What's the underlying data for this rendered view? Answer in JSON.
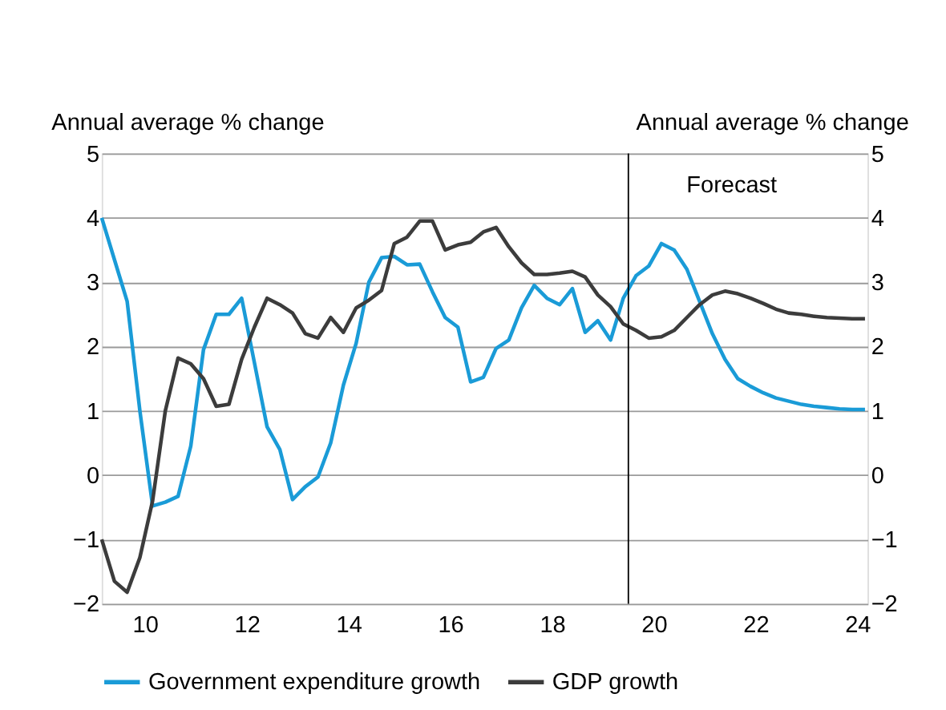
{
  "chart_data": {
    "type": "line",
    "ylabel": "Annual average % change",
    "y2label": "Annual average % change",
    "xlim": [
      9.15,
      24.2
    ],
    "xticks": [
      10,
      12,
      14,
      16,
      18,
      20,
      22,
      24
    ],
    "ylim": [
      -2,
      5
    ],
    "yticks": [
      -2,
      -1,
      0,
      1,
      2,
      3,
      4,
      5
    ],
    "y2lim": [
      -2,
      5
    ],
    "y2ticks": [
      -2,
      -1,
      0,
      1,
      2,
      3,
      4,
      5
    ],
    "x": [
      9.15,
      9.4,
      9.65,
      9.9,
      10.15,
      10.4,
      10.65,
      10.9,
      11.15,
      11.4,
      11.65,
      11.9,
      12.15,
      12.4,
      12.65,
      12.9,
      13.15,
      13.4,
      13.65,
      13.9,
      14.15,
      14.4,
      14.65,
      14.9,
      15.15,
      15.4,
      15.65,
      15.9,
      16.15,
      16.4,
      16.65,
      16.9,
      17.15,
      17.4,
      17.65,
      17.9,
      18.15,
      18.4,
      18.65,
      18.9,
      19.15,
      19.4,
      19.65,
      19.9,
      20.15,
      20.4,
      20.65,
      20.9,
      21.15,
      21.4,
      21.65,
      21.9,
      22.15,
      22.4,
      22.65,
      22.9,
      23.15,
      23.4,
      23.65,
      23.9,
      24.15
    ],
    "grid": "y",
    "legend": "bottom",
    "marker": "none",
    "line_style": "solid",
    "ref_lines": [
      {
        "axis": "x",
        "value": 19.5,
        "label": "Forecast",
        "color": "#000000"
      }
    ],
    "series": [
      {
        "name": "Government expenditure growth",
        "color": "#1a9bd7",
        "values": [
          4.0,
          3.35,
          2.7,
          1.0,
          -0.48,
          -0.42,
          -0.33,
          0.45,
          1.95,
          2.5,
          2.5,
          2.75,
          1.75,
          0.75,
          0.4,
          -0.38,
          -0.18,
          -0.03,
          0.5,
          1.4,
          2.05,
          3.0,
          3.38,
          3.4,
          3.27,
          3.28,
          2.85,
          2.45,
          2.3,
          1.45,
          1.52,
          1.97,
          2.1,
          2.6,
          2.95,
          2.75,
          2.65,
          2.9,
          2.22,
          2.4,
          2.1,
          2.75,
          3.1,
          3.25,
          3.6,
          3.5,
          3.2,
          2.7,
          2.2,
          1.8,
          1.5,
          1.38,
          1.28,
          1.2,
          1.15,
          1.1,
          1.07,
          1.05,
          1.03,
          1.02,
          1.02
        ]
      },
      {
        "name": "GDP growth",
        "color": "#3c3c3c",
        "values": [
          -1.0,
          -1.65,
          -1.82,
          -1.28,
          -0.4,
          1.0,
          1.82,
          1.73,
          1.5,
          1.07,
          1.1,
          1.8,
          2.3,
          2.75,
          2.65,
          2.52,
          2.2,
          2.13,
          2.45,
          2.22,
          2.6,
          2.72,
          2.87,
          3.6,
          3.7,
          3.95,
          3.95,
          3.5,
          3.58,
          3.62,
          3.78,
          3.85,
          3.55,
          3.3,
          3.12,
          3.12,
          3.14,
          3.17,
          3.08,
          2.8,
          2.62,
          2.35,
          2.25,
          2.13,
          2.15,
          2.25,
          2.45,
          2.65,
          2.8,
          2.86,
          2.82,
          2.75,
          2.67,
          2.58,
          2.52,
          2.5,
          2.47,
          2.45,
          2.44,
          2.43,
          2.43
        ]
      }
    ]
  }
}
